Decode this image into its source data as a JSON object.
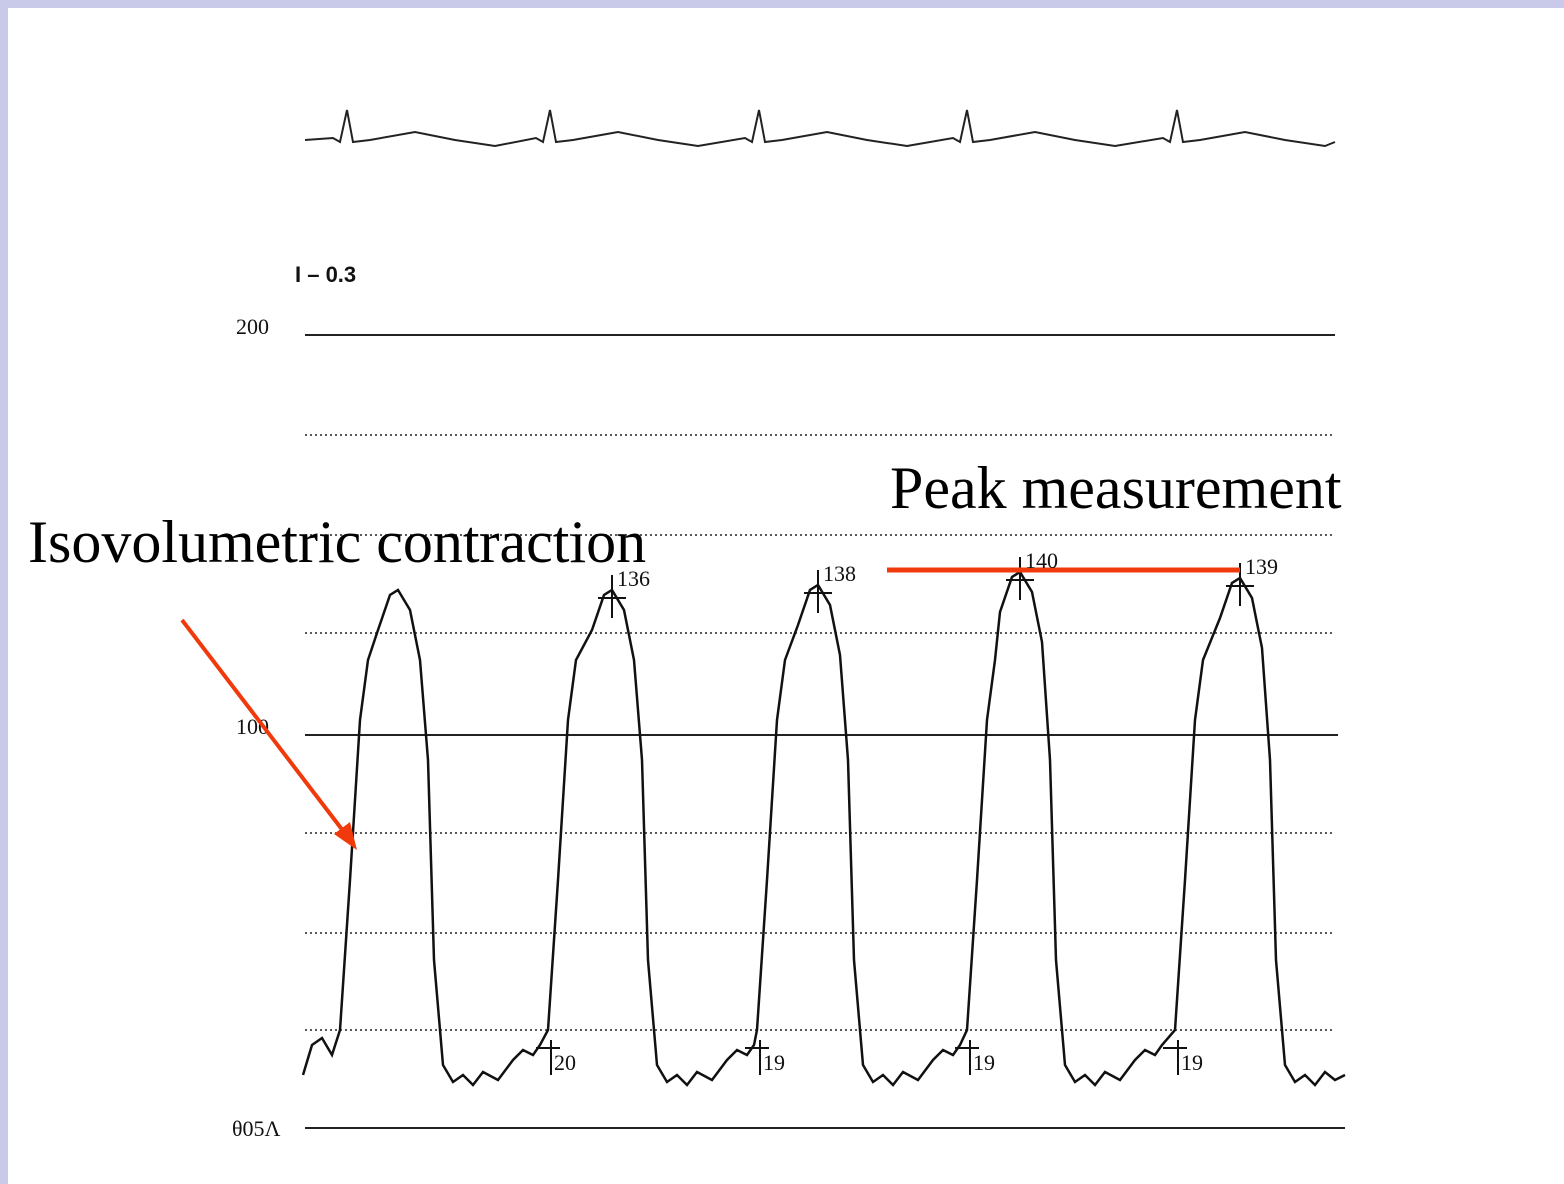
{
  "figure": {
    "scale_label": "I – 0.3",
    "axis_labels": [
      "200",
      "100",
      "θ05Λ"
    ],
    "peak_labels": [
      "136",
      "138",
      "140",
      "139"
    ],
    "trough_labels": [
      "20",
      "19",
      "19",
      "19"
    ]
  },
  "annotations": {
    "contraction": "Isovolumetric contraction",
    "peak": "Peak measurement"
  }
}
